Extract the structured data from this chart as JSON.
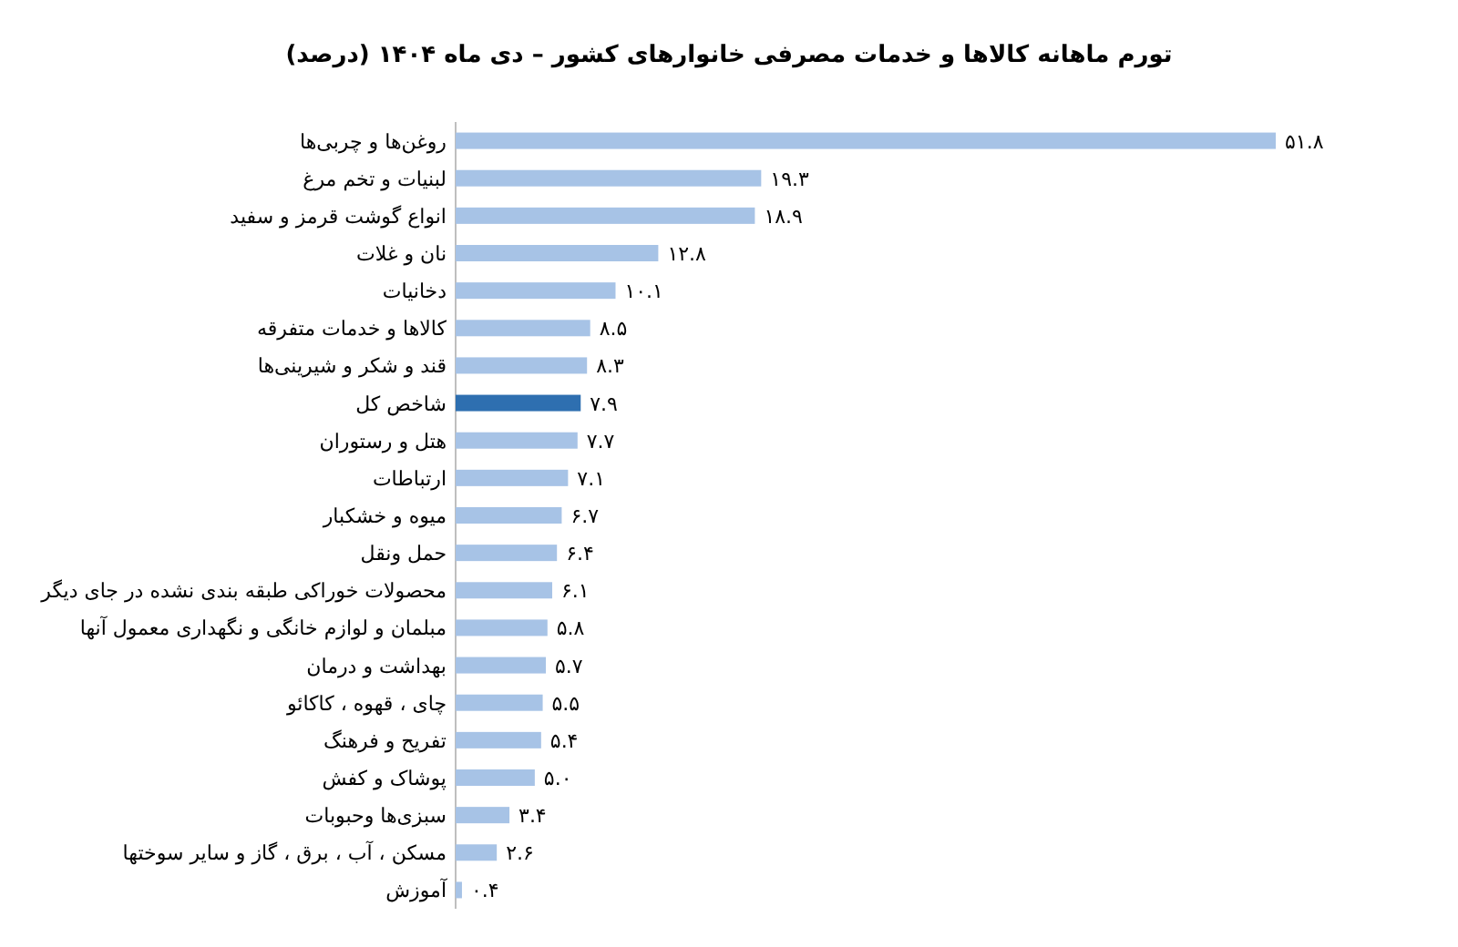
{
  "chart_data": {
    "type": "bar",
    "orientation": "horizontal",
    "title": "تورم ماهانه کالاها و خدمات مصرفی خانوارهای کشور – دی ماه ۱۴۰۴ (درصد)",
    "categories": [
      "روغن‌ها و چربی‌ها",
      "لبنیات و تخم مرغ",
      "انواع گوشت قرمز و سفید",
      "نان و غلات",
      "دخانیات",
      "کالاها و خدمات متفرقه",
      "قند و شکر و شیرینی‌ها",
      "شاخص کل",
      "هتل و رستوران",
      "ارتباطات",
      "میوه و خشکبار",
      "حمل ونقل",
      "محصولات خوراکی طبقه بندی نشده در جای دیگر",
      "مبلمان و لوازم خانگی و نگهداری معمول آنها",
      "بهداشت و درمان",
      "چای ، قهوه ، کاکائو",
      "تفریح و فرهنگ",
      "پوشاک و کفش",
      "سبزی‌ها وحبوبات",
      "مسکن ، آب ، برق ، گاز و سایر سوختها",
      "آموزش"
    ],
    "values": [
      51.8,
      19.3,
      18.9,
      12.8,
      10.1,
      8.5,
      8.3,
      7.9,
      7.7,
      7.1,
      6.7,
      6.4,
      6.1,
      5.8,
      5.7,
      5.5,
      5.4,
      5.0,
      3.4,
      2.6,
      0.4
    ],
    "value_labels": [
      "۵۱.۸",
      "۱۹.۳",
      "۱۸.۹",
      "۱۲.۸",
      "۱۰.۱",
      "۸.۵",
      "۸.۳",
      "۷.۹",
      "۷.۷",
      "۷.۱",
      "۶.۷",
      "۶.۴",
      "۶.۱",
      "۵.۸",
      "۵.۷",
      "۵.۵",
      "۵.۴",
      "۵.۰",
      "۳.۴",
      "۲.۶",
      "۰.۴"
    ],
    "colors": [
      "#a7c3e6",
      "#a7c3e6",
      "#a7c3e6",
      "#a7c3e6",
      "#a7c3e6",
      "#a7c3e6",
      "#a7c3e6",
      "#2e6fb0",
      "#a7c3e6",
      "#a7c3e6",
      "#a7c3e6",
      "#a7c3e6",
      "#a7c3e6",
      "#a7c3e6",
      "#a7c3e6",
      "#a7c3e6",
      "#a7c3e6",
      "#a7c3e6",
      "#a7c3e6",
      "#a7c3e6",
      "#a7c3e6"
    ]
  }
}
